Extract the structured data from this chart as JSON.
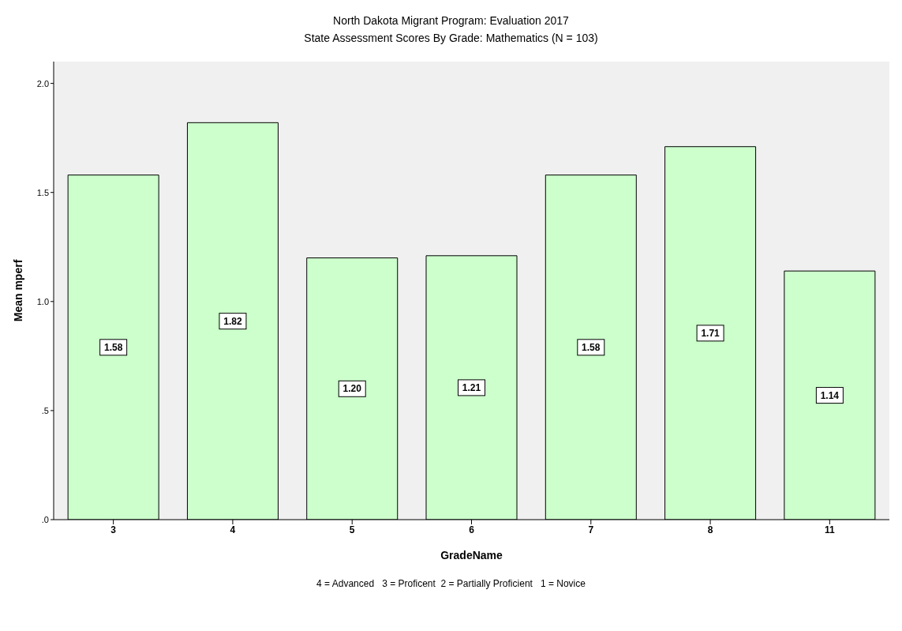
{
  "chart_data": {
    "type": "bar",
    "title": "North Dakota Migrant Program:  Evaluation 2017",
    "subtitle": "State Assessment Scores By Grade: Mathematics (N = 103)",
    "xlabel": "GradeName",
    "ylabel": "Mean mperf",
    "categories": [
      "3",
      "4",
      "5",
      "6",
      "7",
      "8",
      "11"
    ],
    "values": [
      1.58,
      1.82,
      1.2,
      1.21,
      1.58,
      1.71,
      1.14
    ],
    "value_labels": [
      "1.58",
      "1.82",
      "1.20",
      "1.21",
      "1.58",
      "1.71",
      "1.14"
    ],
    "color": "#ccffcc",
    "ylim": [
      0,
      2.1
    ],
    "yticks": [
      {
        "value": 0,
        "label": ".0"
      },
      {
        "value": 0.5,
        "label": ".5"
      },
      {
        "value": 1,
        "label": "1.0"
      },
      {
        "value": 1.5,
        "label": "1.5"
      },
      {
        "value": 2,
        "label": "2.0"
      }
    ],
    "grid": false,
    "legend": false,
    "annotations": [
      "4 = Advanced   3 = Proficent  2 = Partially Proficient   1 = Novice"
    ]
  }
}
